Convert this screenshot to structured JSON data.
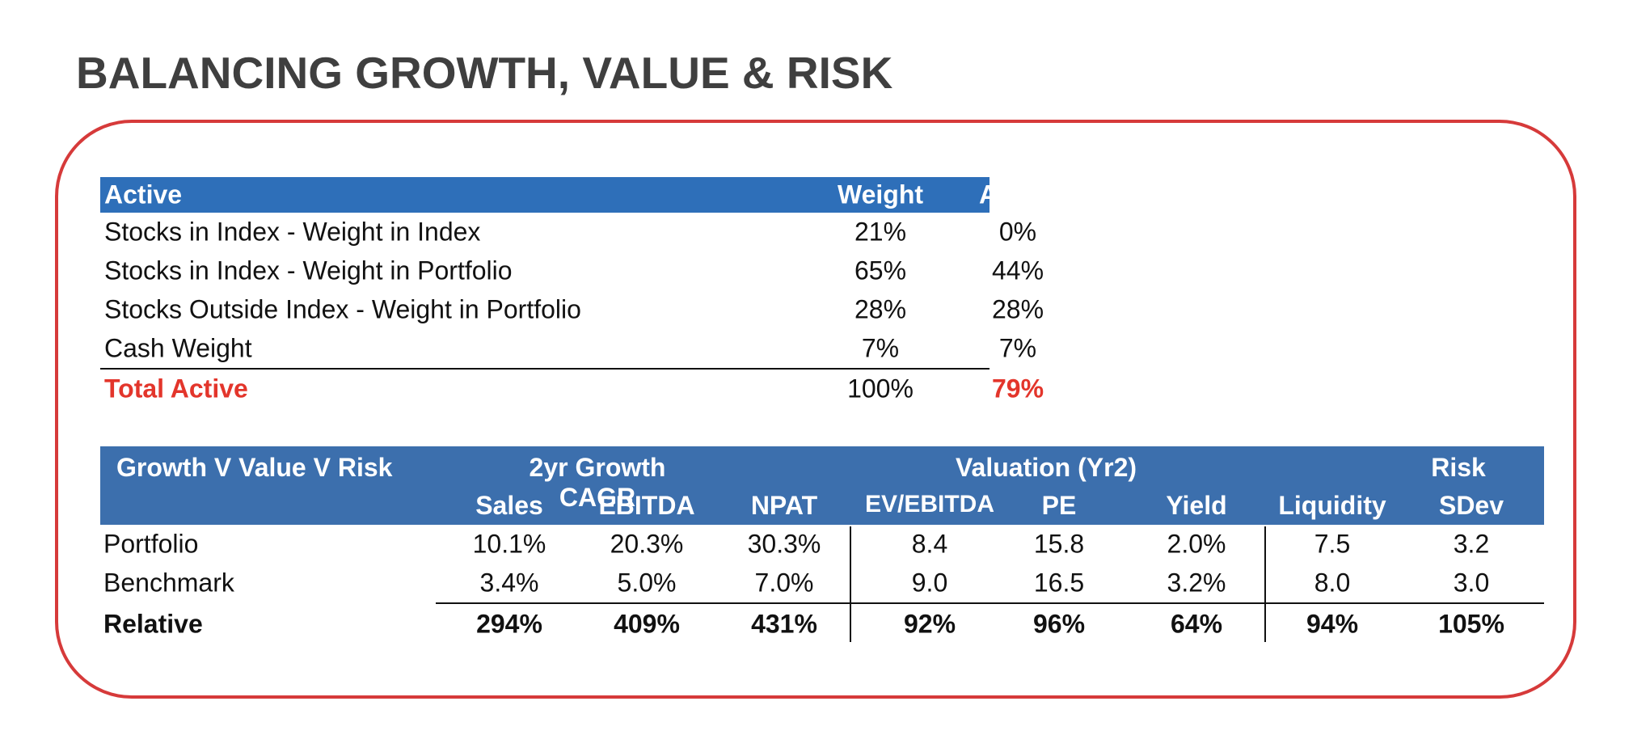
{
  "title": "BALANCING GROWTH, VALUE & RISK",
  "active_table": {
    "headers": [
      "Active",
      "Weight",
      "Active"
    ],
    "rows": [
      {
        "label": "Stocks in Index - Weight in Index",
        "weight": "21%",
        "active": "0%"
      },
      {
        "label": "Stocks in Index - Weight in Portfolio",
        "weight": "65%",
        "active": "44%"
      },
      {
        "label": "Stocks Outside Index - Weight in Portfolio",
        "weight": "28%",
        "active": "28%"
      },
      {
        "label": "Cash Weight",
        "weight": "7%",
        "active": "7%"
      }
    ],
    "total": {
      "label": "Total Active",
      "weight": "100%",
      "active": "79%"
    }
  },
  "growth_table": {
    "title": "Growth V Value V Risk",
    "groups": [
      "2yr Growth CAGR",
      "Valuation (Yr2)",
      "Risk"
    ],
    "columns": [
      "Sales",
      "EBITDA",
      "NPAT",
      "EV/EBITDA",
      "PE",
      "Yield",
      "Liquidity",
      "SDev"
    ],
    "rows": [
      {
        "label": "Portfolio",
        "values": [
          "10.1%",
          "20.3%",
          "30.3%",
          "8.4",
          "15.8",
          "2.0%",
          "7.5",
          "3.2"
        ]
      },
      {
        "label": "Benchmark",
        "values": [
          "3.4%",
          "5.0%",
          "7.0%",
          "9.0",
          "16.5",
          "3.2%",
          "8.0",
          "3.0"
        ]
      }
    ],
    "relative": {
      "label": "Relative",
      "values": [
        "294%",
        "409%",
        "431%",
        "92%",
        "96%",
        "64%",
        "94%",
        "105%"
      ]
    }
  },
  "colors": {
    "accent_red": "#e3352b",
    "frame_red": "#d63a3a",
    "header_blue": "#2e6fb9",
    "title_gray": "#3f3f3f"
  }
}
